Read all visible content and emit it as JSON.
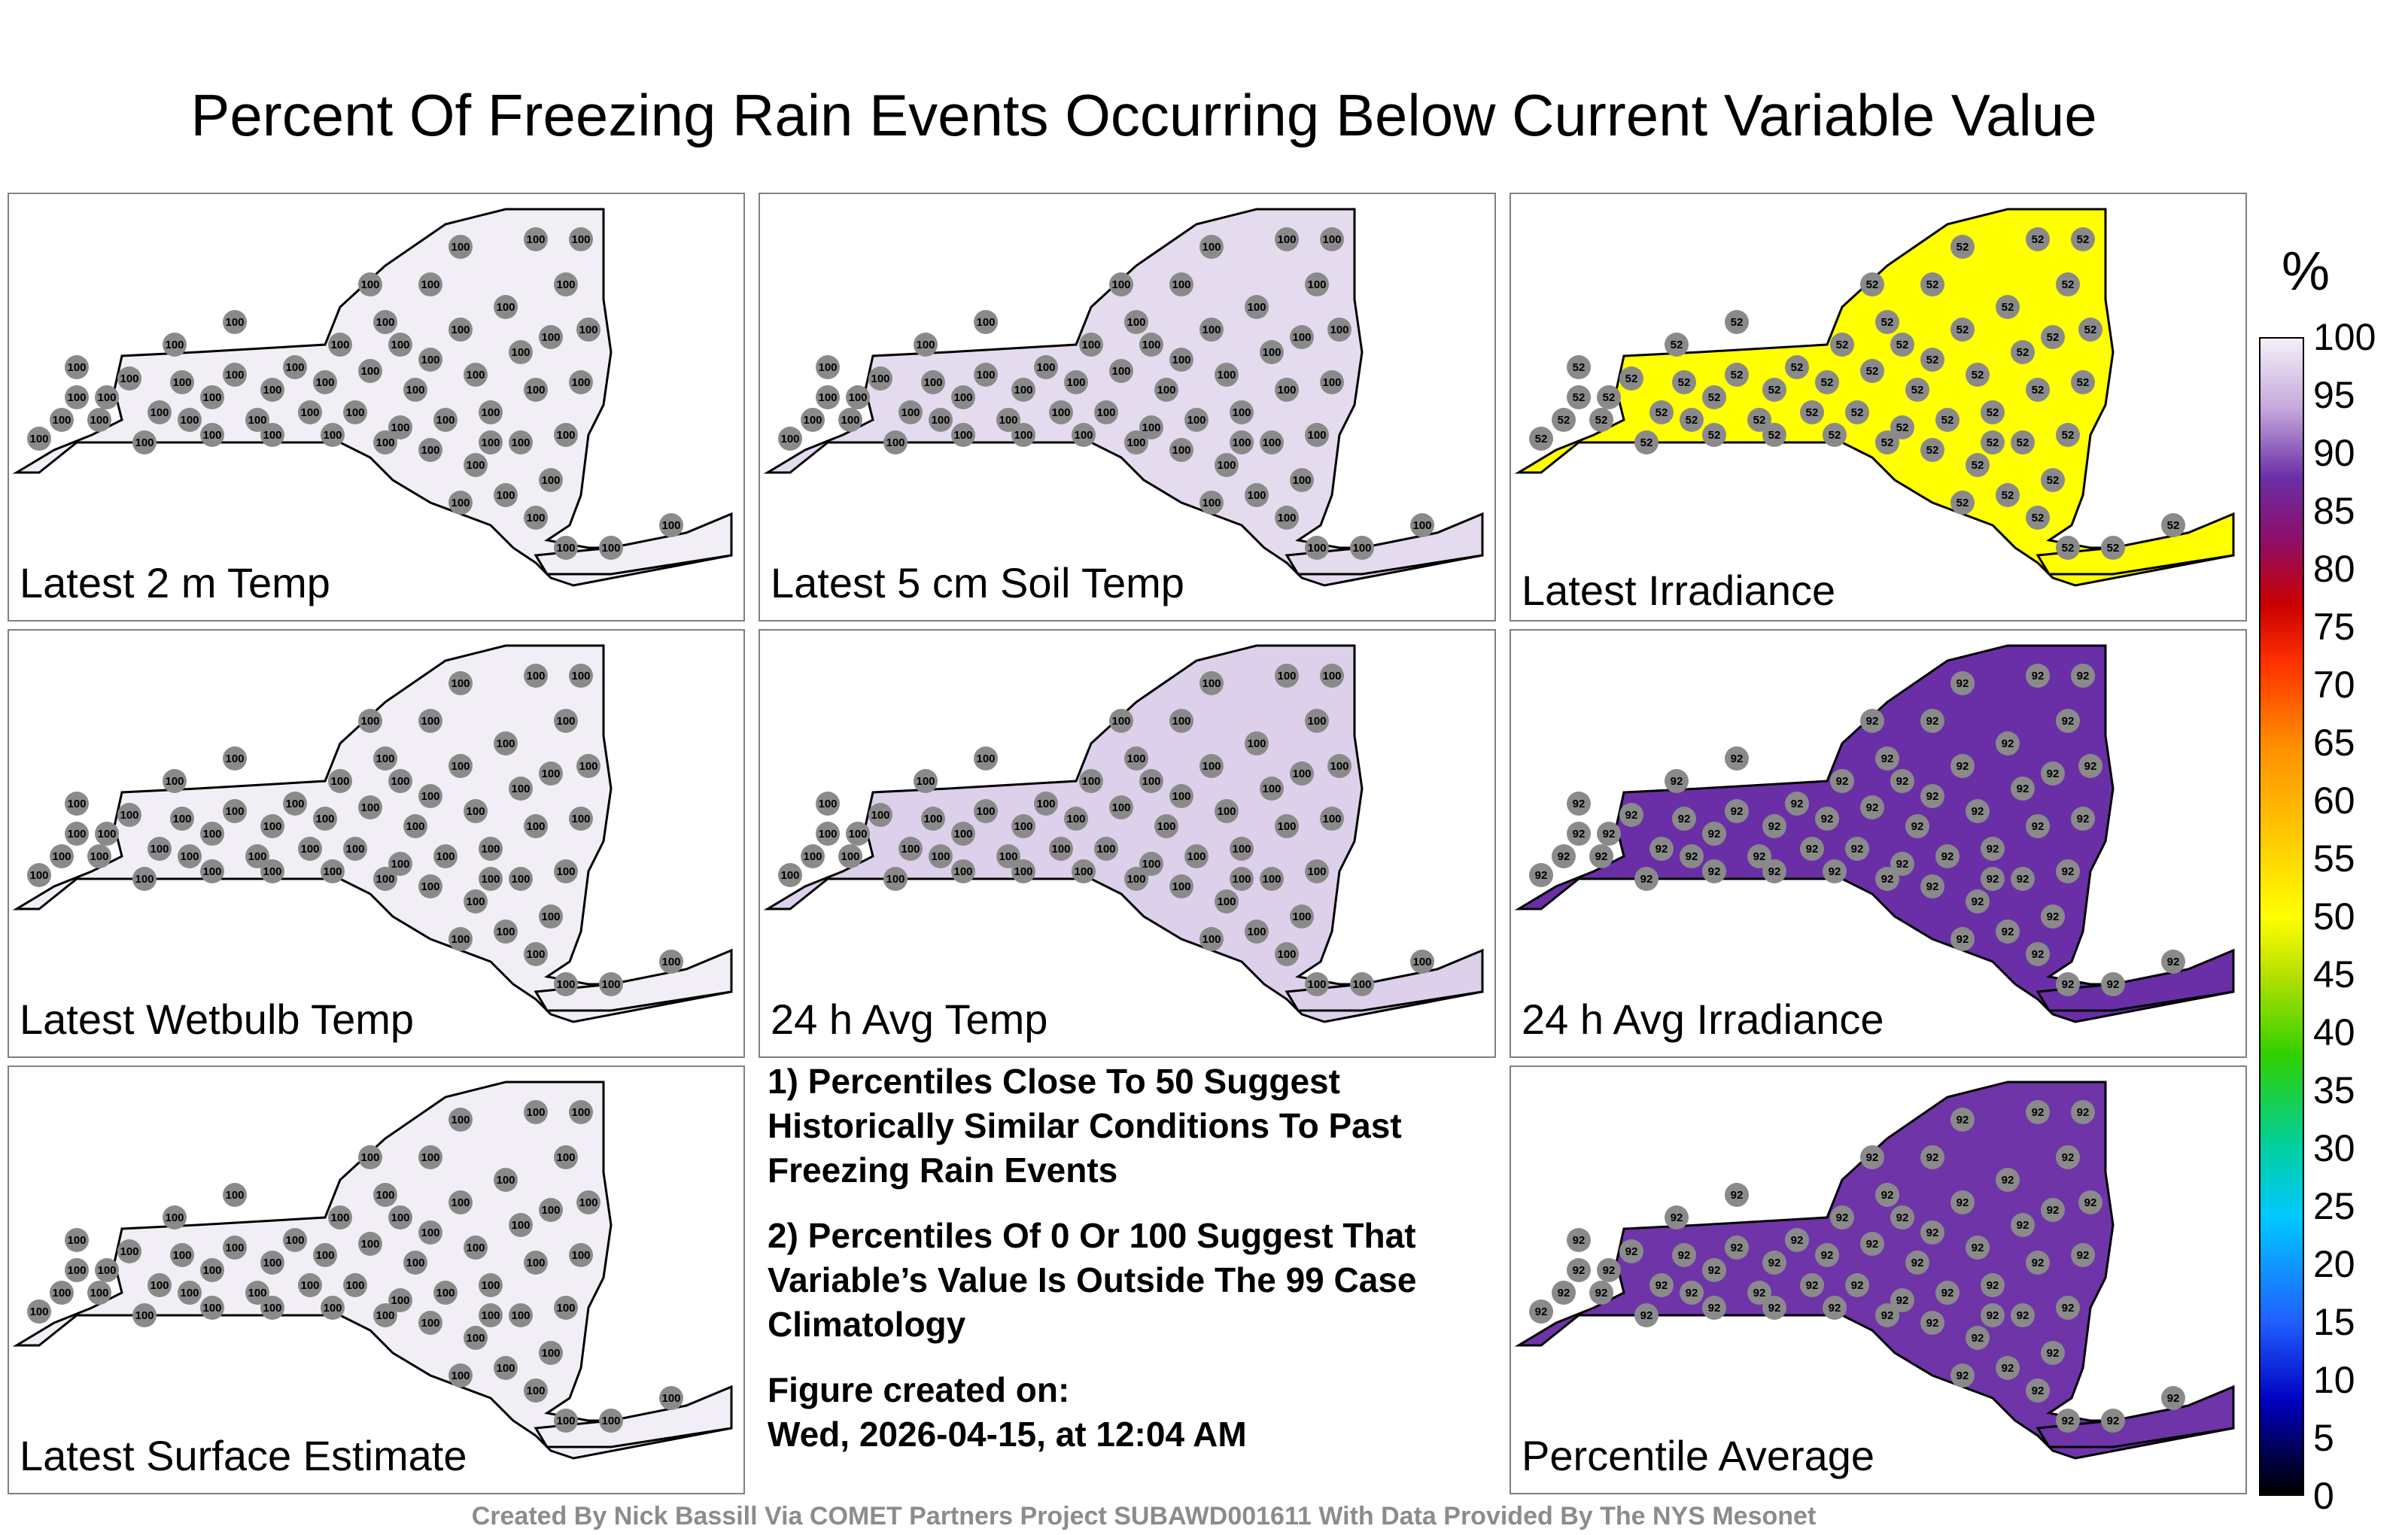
{
  "title": "Percent Of Freezing Rain Events Occurring Below Current Variable Value",
  "panels": [
    {
      "label": "Latest 2 m Temp",
      "fill": "#f2eef6",
      "value": "100"
    },
    {
      "label": "Latest 5 cm Soil Temp",
      "fill": "#e5dbef",
      "value": "100"
    },
    {
      "label": "Latest Irradiance",
      "fill": "#ffff00",
      "value": "52"
    },
    {
      "label": "Latest Wetbulb Temp",
      "fill": "#f2eef6",
      "value": "100"
    },
    {
      "label": "24 h Avg Temp",
      "fill": "#ddd0ea",
      "value": "100"
    },
    {
      "label": "24 h Avg Irradiance",
      "fill": "#6a2fa6",
      "value": "92"
    },
    {
      "label": "Latest Surface Estimate",
      "fill": "#f2eef6",
      "value": "100"
    },
    {
      "label": "Percentile Average",
      "fill": "#6e34a8",
      "value": "92"
    }
  ],
  "notes": {
    "note1": "1) Percentiles Close To 50 Suggest Historically Similar Conditions To Past Freezing Rain Events",
    "note2": "2) Percentiles Of 0 Or 100 Suggest That Variable’s Value Is Outside The 99 Case Climatology",
    "created_label": "Figure created on:",
    "created_date": "Wed, 2026-04-15, at 12:04 AM"
  },
  "footer": "Created By Nick Bassill Via COMET Partners Project SUBAWD001611 With Data Provided By The NYS Mesonet",
  "colorbar": {
    "unit": "%",
    "ticks": [
      "100",
      "95",
      "90",
      "85",
      "80",
      "75",
      "70",
      "65",
      "60",
      "55",
      "50",
      "45",
      "40",
      "35",
      "30",
      "25",
      "20",
      "15",
      "10",
      "5",
      "0"
    ]
  }
}
